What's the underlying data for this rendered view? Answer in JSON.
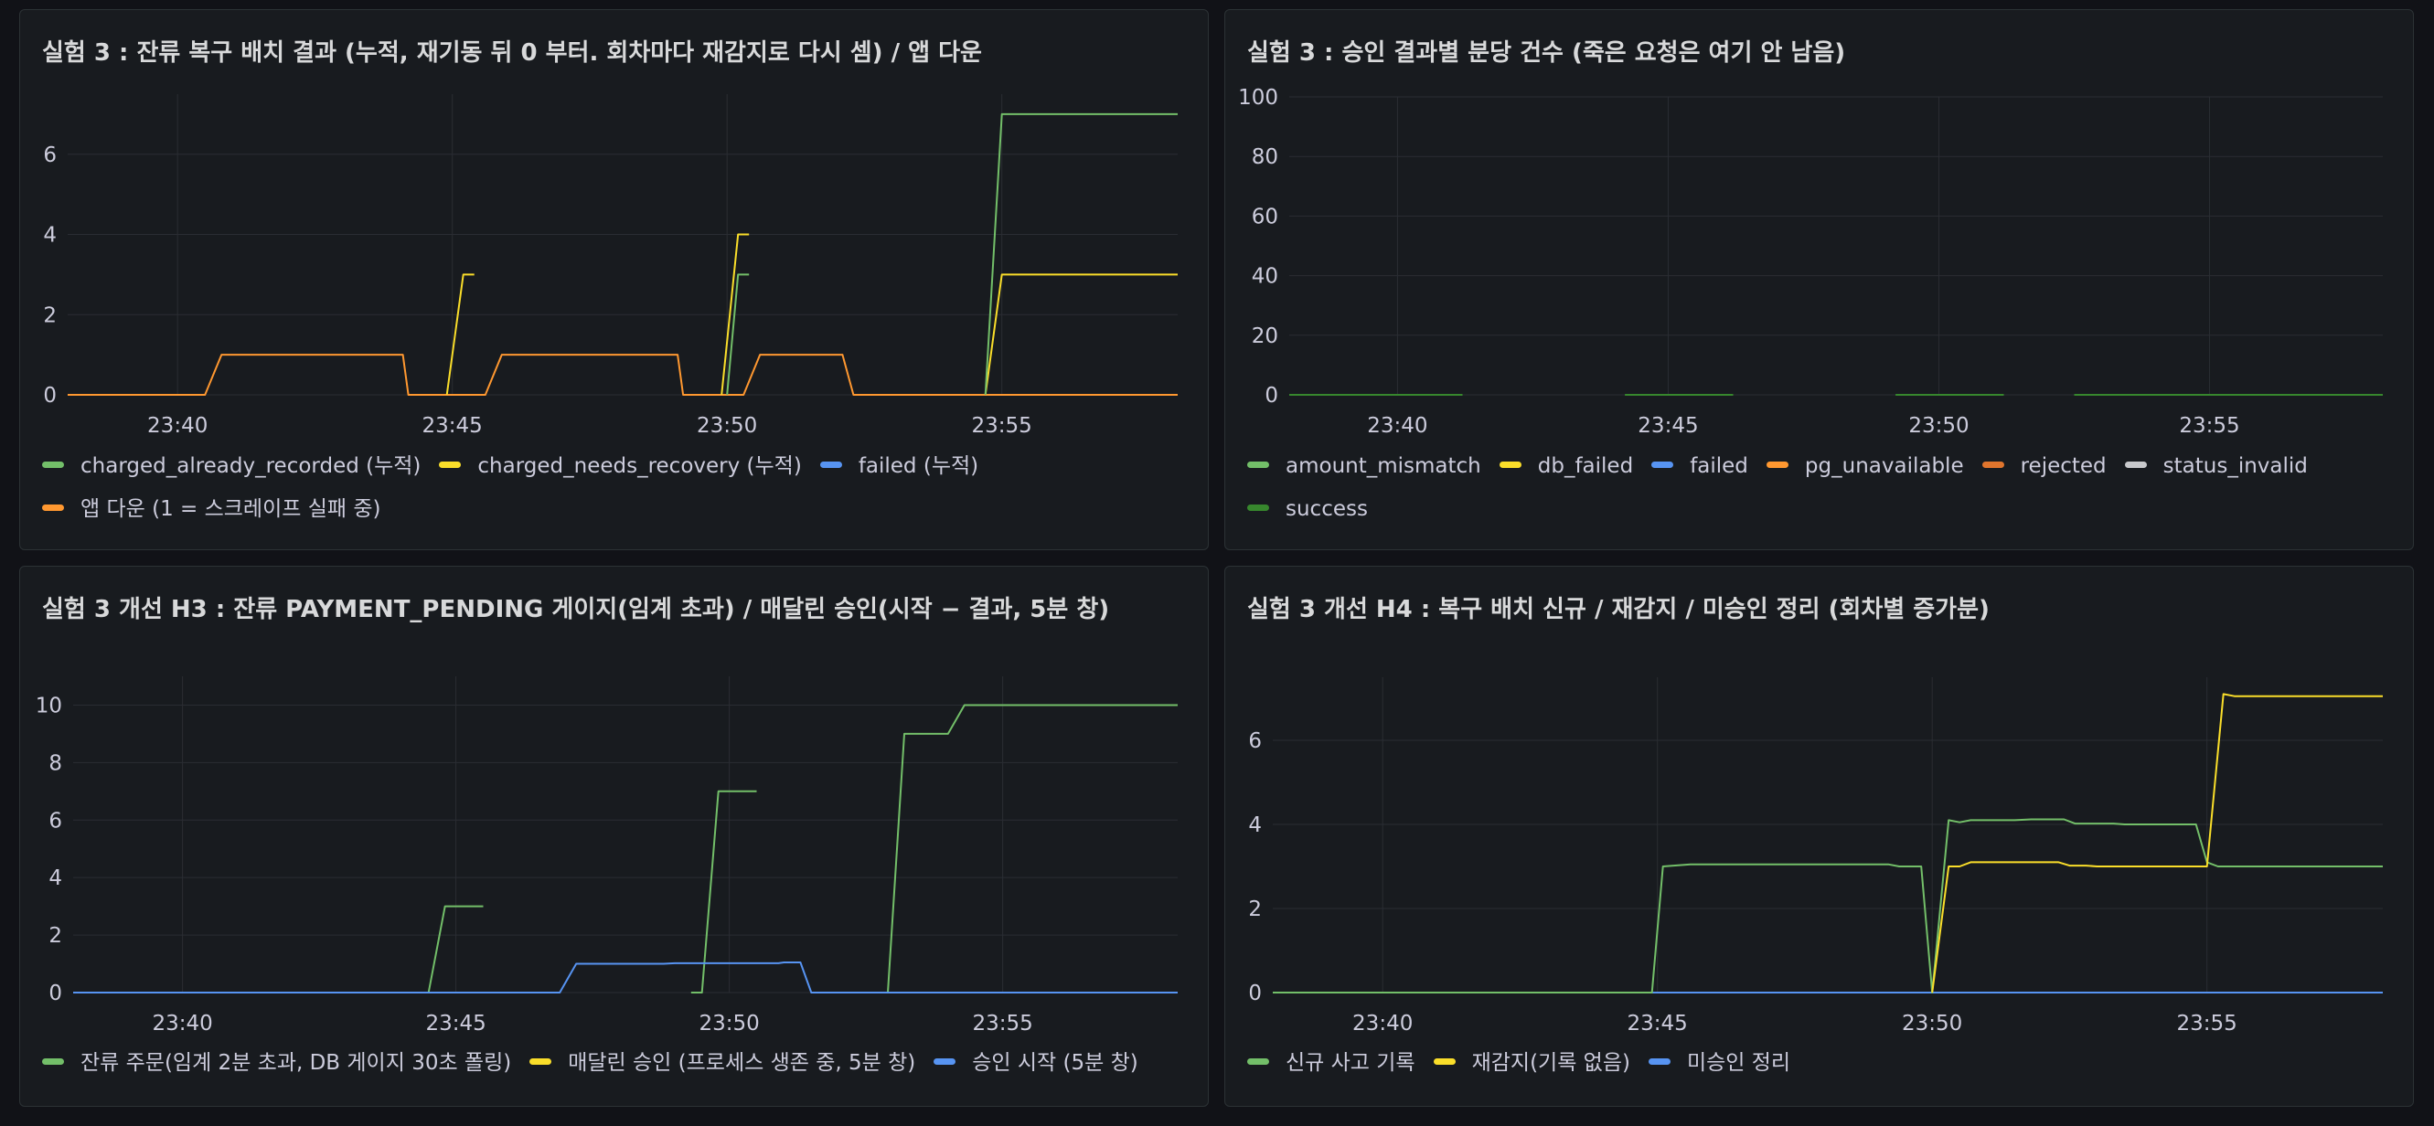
{
  "panels": [
    {
      "title": "실험 3 : 잔류 복구 배치 결과 (누적, 재기동 뒤 0 부터. 회차마다 재감지로 다시 셈) / 앱 다운",
      "legend": [
        {
          "name": "charged_already_recorded (누적)",
          "color": "#73bf69"
        },
        {
          "name": "charged_needs_recovery (누적)",
          "color": "#fade2a"
        },
        {
          "name": "failed (누적)",
          "color": "#5794f2"
        },
        {
          "name": "앱 다운 (1 = 스크레이프 실패 중)",
          "color": "#ff9830"
        }
      ]
    },
    {
      "title": "실험 3 : 승인 결과별 분당 건수 (죽은 요청은 여기 안 남음)",
      "legend": [
        {
          "name": "amount_mismatch",
          "color": "#73bf69"
        },
        {
          "name": "db_failed",
          "color": "#fade2a"
        },
        {
          "name": "failed",
          "color": "#5794f2"
        },
        {
          "name": "pg_unavailable",
          "color": "#ff9830"
        },
        {
          "name": "rejected",
          "color": "#e0752d"
        },
        {
          "name": "status_invalid",
          "color": "#c8c9cc"
        },
        {
          "name": "success",
          "color": "#37872d"
        }
      ]
    },
    {
      "title": "실험 3 개선 H3 : 잔류 PAYMENT_PENDING 게이지(임계 초과) / 매달린 승인(시작 − 결과, 5분 창)",
      "legend": [
        {
          "name": "잔류 주문(임계 2분 초과, DB 게이지 30초 폴링)",
          "color": "#73bf69"
        },
        {
          "name": "매달린 승인 (프로세스 생존 중, 5분 창)",
          "color": "#fade2a"
        },
        {
          "name": "승인 시작 (5분 창)",
          "color": "#5794f2"
        }
      ]
    },
    {
      "title": "실험 3 개선 H4 : 복구 배치 신규 / 재감지 / 미승인 정리 (회차별 증가분)",
      "legend": [
        {
          "name": "신규 사고 기록",
          "color": "#73bf69"
        },
        {
          "name": "재감지(기록 없음)",
          "color": "#fade2a"
        },
        {
          "name": "미승인 정리",
          "color": "#5794f2"
        }
      ]
    }
  ],
  "chart_data": [
    {
      "type": "line",
      "title": "실험 3 : 잔류 복구 배치 결과 (누적, 재기동 뒤 0 부터. 회차마다 재감지로 다시 셈) / 앱 다운",
      "x_ticks": [
        "23:40",
        "23:45",
        "23:50",
        "23:55"
      ],
      "y_ticks": [
        0,
        2,
        4,
        6
      ],
      "xlim": [
        38.0,
        58.2
      ],
      "ylim": [
        0,
        7.5
      ],
      "grid": true,
      "legend_position": "bottom",
      "series": [
        {
          "name": "앱 다운 (1 = 스크레이프 실패 중)",
          "color": "#ff9830",
          "points": [
            [
              38.0,
              0
            ],
            [
              40.5,
              0
            ],
            [
              40.8,
              1
            ],
            [
              44.1,
              1
            ],
            [
              44.2,
              0
            ],
            [
              45.6,
              0
            ],
            [
              45.9,
              1
            ],
            [
              49.1,
              1
            ],
            [
              49.2,
              0
            ],
            [
              50.3,
              0
            ],
            [
              50.6,
              1
            ],
            [
              52.1,
              1
            ],
            [
              52.3,
              0
            ],
            [
              58.2,
              0
            ]
          ]
        },
        {
          "name": "charged_needs_recovery (누적)",
          "color": "#fade2a",
          "segments": [
            [
              [
                44.9,
                0
              ],
              [
                45.2,
                3
              ],
              [
                45.4,
                3
              ]
            ],
            [
              [
                49.9,
                0
              ],
              [
                50.2,
                4
              ],
              [
                50.4,
                4
              ]
            ],
            [
              [
                54.7,
                0
              ],
              [
                55.0,
                3
              ],
              [
                58.2,
                3
              ]
            ]
          ]
        },
        {
          "name": "charged_already_recorded (누적)",
          "color": "#73bf69",
          "segments": [
            [
              [
                50.0,
                0
              ],
              [
                50.2,
                3
              ],
              [
                50.4,
                3
              ]
            ],
            [
              [
                54.7,
                0
              ],
              [
                55.0,
                7
              ],
              [
                58.2,
                7
              ]
            ]
          ]
        }
      ]
    },
    {
      "type": "line",
      "title": "실험 3 : 승인 결과별 분당 건수 (죽은 요청은 여기 안 남음)",
      "x_ticks": [
        "23:40",
        "23:45",
        "23:50",
        "23:55"
      ],
      "y_ticks": [
        0,
        20,
        40,
        60,
        80,
        100
      ],
      "xlim": [
        38.0,
        58.2
      ],
      "ylim": [
        0,
        100
      ],
      "grid": true,
      "legend_position": "bottom",
      "series": [
        {
          "name": "success",
          "color": "#37872d",
          "segments": [
            [
              [
                38.0,
                0
              ],
              [
                41.2,
                0
              ]
            ],
            [
              [
                44.2,
                0
              ],
              [
                46.2,
                0
              ]
            ],
            [
              [
                49.2,
                0
              ],
              [
                51.2,
                0
              ]
            ],
            [
              [
                52.5,
                0
              ],
              [
                58.2,
                0
              ]
            ]
          ]
        }
      ]
    },
    {
      "type": "line",
      "title": "실험 3 개선 H3 : 잔류 PAYMENT_PENDING 게이지(임계 초과) / 매달린 승인(시작 − 결과, 5분 창)",
      "x_ticks": [
        "23:40",
        "23:45",
        "23:50",
        "23:55"
      ],
      "y_ticks": [
        0,
        2,
        4,
        6,
        8,
        10
      ],
      "xlim": [
        38.0,
        58.2
      ],
      "ylim": [
        0,
        11
      ],
      "grid": true,
      "legend_position": "bottom",
      "series": [
        {
          "name": "잔류 주문(임계 2분 초과, DB 게이지 30초 폴링)",
          "color": "#73bf69",
          "segments": [
            [
              [
                44.5,
                0
              ],
              [
                44.8,
                3
              ],
              [
                45.5,
                3
              ]
            ],
            [
              [
                49.3,
                0
              ],
              [
                49.5,
                0
              ],
              [
                49.8,
                7
              ],
              [
                50.5,
                7
              ]
            ],
            [
              [
                52.9,
                0
              ],
              [
                53.2,
                9
              ],
              [
                54.0,
                9
              ],
              [
                54.3,
                10
              ],
              [
                58.2,
                10
              ]
            ]
          ]
        },
        {
          "name": "승인 시작 (5분 창)",
          "color": "#5794f2",
          "points": [
            [
              38.0,
              0
            ],
            [
              46.9,
              0
            ],
            [
              47.2,
              1
            ],
            [
              48.8,
              1
            ],
            [
              49.0,
              1.02
            ],
            [
              50.9,
              1.02
            ],
            [
              51.0,
              1.05
            ],
            [
              51.3,
              1.05
            ],
            [
              51.5,
              0
            ],
            [
              58.2,
              0
            ]
          ]
        }
      ]
    },
    {
      "type": "line",
      "title": "실험 3 개선 H4 : 복구 배치 신규 / 재감지 / 미승인 정리 (회차별 증가분)",
      "x_ticks": [
        "23:40",
        "23:45",
        "23:50",
        "23:55"
      ],
      "y_ticks": [
        0,
        2,
        4,
        6
      ],
      "xlim": [
        38.0,
        58.2
      ],
      "ylim": [
        0,
        7.5
      ],
      "grid": true,
      "legend_position": "bottom",
      "series": [
        {
          "name": "미승인 정리",
          "color": "#5794f2",
          "points": [
            [
              38.0,
              0
            ],
            [
              58.2,
              0
            ]
          ]
        },
        {
          "name": "신규 사고 기록",
          "color": "#73bf69",
          "points": [
            [
              38.0,
              0
            ],
            [
              44.9,
              0
            ],
            [
              45.1,
              3
            ],
            [
              45.6,
              3.05
            ],
            [
              49.2,
              3.05
            ],
            [
              49.4,
              3
            ],
            [
              49.8,
              3
            ],
            [
              50.0,
              0
            ],
            [
              50.3,
              4.1
            ],
            [
              50.5,
              4.05
            ],
            [
              50.7,
              4.1
            ],
            [
              51.5,
              4.1
            ],
            [
              51.8,
              4.12
            ],
            [
              52.4,
              4.12
            ],
            [
              52.6,
              4.02
            ],
            [
              53.3,
              4.02
            ],
            [
              53.5,
              4.0
            ],
            [
              54.8,
              4.0
            ],
            [
              55.0,
              3.1
            ],
            [
              55.2,
              3.0
            ],
            [
              58.2,
              3.0
            ]
          ]
        },
        {
          "name": "재감지(기록 없음)",
          "color": "#fade2a",
          "segments": [
            [
              [
                50.0,
                0
              ],
              [
                50.3,
                3.0
              ],
              [
                50.5,
                3.0
              ],
              [
                50.7,
                3.1
              ],
              [
                52.3,
                3.1
              ],
              [
                52.5,
                3.02
              ],
              [
                52.8,
                3.02
              ],
              [
                53.0,
                3.0
              ],
              [
                55.0,
                3.0
              ],
              [
                55.3,
                7.1
              ],
              [
                55.5,
                7.05
              ],
              [
                58.2,
                7.05
              ]
            ]
          ]
        }
      ]
    }
  ]
}
